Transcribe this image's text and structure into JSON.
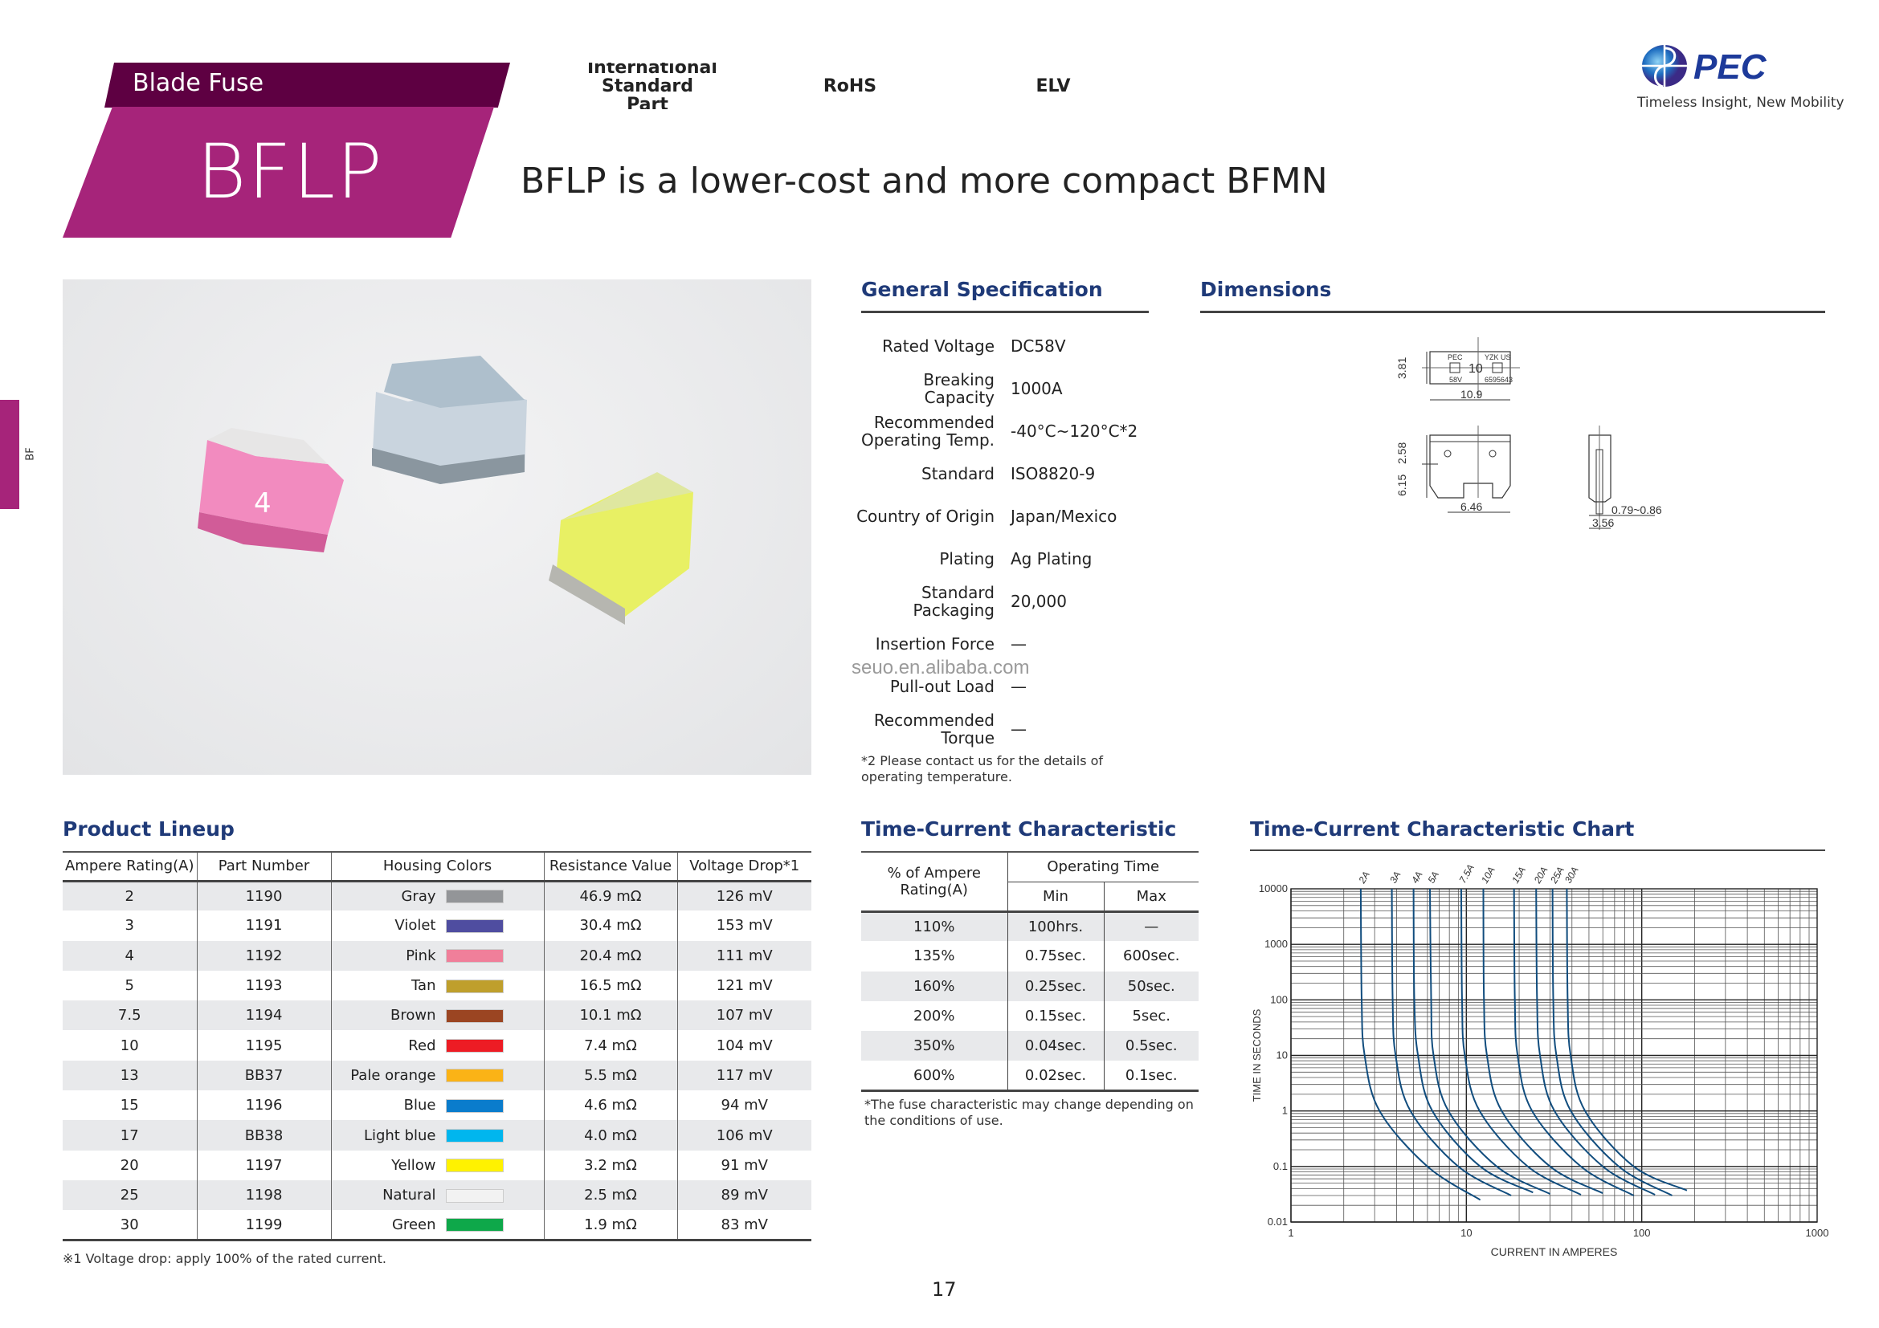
{
  "header": {
    "category": "Blade Fuse",
    "product": "BFLP",
    "tagline": "BFLP is a lower-cost and more compact BFMN",
    "badges": [
      "International Standard Part",
      "RoHS",
      "ELV"
    ],
    "badge_colors": [
      "#f9bb72",
      "#b9d98a",
      "#97d5d0"
    ]
  },
  "logo": {
    "name": "PEC",
    "tagline": "Timeless Insight, New Mobility"
  },
  "side_tab": "BF",
  "spec": {
    "title": "General Specification",
    "rows": [
      {
        "label": "Rated Voltage",
        "value": "DC58V"
      },
      {
        "label": "Breaking Capacity",
        "value": "1000A"
      },
      {
        "label": "Recommended Operating Temp.",
        "value": "-40°C~120°C*2"
      },
      {
        "label": "Standard",
        "value": "ISO8820-9"
      },
      {
        "label": "Country of Origin",
        "value": "Japan/Mexico"
      },
      {
        "label": "Plating",
        "value": "Ag Plating"
      },
      {
        "label": "Standard Packaging",
        "value": "20,000"
      },
      {
        "label": "Insertion Force",
        "value": "—"
      },
      {
        "label": "Pull-out Load",
        "value": "—"
      },
      {
        "label": "Recommended Torque",
        "value": "—"
      }
    ],
    "footnote": "*2 Please contact us for the details of operating temperature."
  },
  "watermark": "seuo.en.alibaba.com",
  "dimensions": {
    "title": "Dimensions",
    "top_height": "3.81",
    "top_width": "10.9",
    "front_top": "2.58",
    "front_height": "6.15",
    "front_width": "6.46",
    "side_width": "3.56",
    "blade_thickness": "0.79~0.86",
    "marks": {
      "brand": "PEC",
      "code": "YZK US",
      "rating": "10",
      "voltage": "58V",
      "pat": "6595643"
    }
  },
  "lineup": {
    "title": "Product Lineup",
    "headers": [
      "Ampere Rating(A)",
      "Part Number",
      "Housing Colors",
      "Resistance Value",
      "Voltage Drop*1"
    ],
    "rows": [
      [
        "2",
        "1190",
        "Gray",
        "#939598",
        "46.9 mΩ",
        "126 mV"
      ],
      [
        "3",
        "1191",
        "Violet",
        "#4f4da0",
        "30.4 mΩ",
        "153 mV"
      ],
      [
        "4",
        "1192",
        "Pink",
        "#f07f9a",
        "20.4 mΩ",
        "111 mV"
      ],
      [
        "5",
        "1193",
        "Tan",
        "#bf9f2c",
        "16.5 mΩ",
        "121 mV"
      ],
      [
        "7.5",
        "1194",
        "Brown",
        "#9b4522",
        "10.1 mΩ",
        "107 mV"
      ],
      [
        "10",
        "1195",
        "Red",
        "#ed1c24",
        "7.4 mΩ",
        "104 mV"
      ],
      [
        "13",
        "BB37",
        "Pale orange",
        "#fbb316",
        "5.5 mΩ",
        "117 mV"
      ],
      [
        "15",
        "1196",
        "Blue",
        "#0a7ccc",
        "4.6 mΩ",
        "94 mV"
      ],
      [
        "17",
        "BB38",
        "Light blue",
        "#00b6ee",
        "4.0 mΩ",
        "106 mV"
      ],
      [
        "20",
        "1197",
        "Yellow",
        "#fff200",
        "3.2 mΩ",
        "91 mV"
      ],
      [
        "25",
        "1198",
        "Natural",
        "#f2f2f2",
        "2.5 mΩ",
        "89 mV"
      ],
      [
        "30",
        "1199",
        "Green",
        "#0ea84a",
        "1.9 mΩ",
        "83 mV"
      ]
    ],
    "footnote": "※1 Voltage drop: apply 100% of the rated current."
  },
  "tc": {
    "title": "Time-Current Characteristic",
    "col1": "% of Ampere Rating(A)",
    "group": "Operating Time",
    "min": "Min",
    "max": "Max",
    "rows": [
      [
        "110%",
        "100hrs.",
        "—"
      ],
      [
        "135%",
        "0.75sec.",
        "600sec."
      ],
      [
        "160%",
        "0.25sec.",
        "50sec."
      ],
      [
        "200%",
        "0.15sec.",
        "5sec."
      ],
      [
        "350%",
        "0.04sec.",
        "0.5sec."
      ],
      [
        "600%",
        "0.02sec.",
        "0.1sec."
      ]
    ],
    "footnote": "*The fuse characteristic may change depending on the conditions of use."
  },
  "chart_data": {
    "type": "line",
    "title": "Time-Current Characteristic Chart",
    "xlabel": "CURRENT IN AMPERES",
    "ylabel": "TIME IN SECONDS",
    "xscale": "log",
    "yscale": "log",
    "xlim": [
      1,
      1000
    ],
    "ylim": [
      0.01,
      10000
    ],
    "grid": true,
    "xticks": [
      "1",
      "10",
      "100",
      "1000"
    ],
    "yticks": [
      "10000",
      "1000",
      "100",
      "10",
      "1",
      "0.1",
      "0.01"
    ],
    "line_color": "#114d7e",
    "series": [
      {
        "name": "2A",
        "points": [
          [
            2.5,
            10000
          ],
          [
            2.53,
            100
          ],
          [
            2.63,
            10
          ],
          [
            3.2,
            1
          ],
          [
            6,
            0.1
          ],
          [
            12,
            0.025
          ]
        ]
      },
      {
        "name": "3A",
        "points": [
          [
            3.76,
            10000
          ],
          [
            3.8,
            100
          ],
          [
            3.95,
            10
          ],
          [
            4.8,
            1
          ],
          [
            9,
            0.1
          ],
          [
            18,
            0.03
          ]
        ]
      },
      {
        "name": "4A",
        "points": [
          [
            5,
            10000
          ],
          [
            5.05,
            100
          ],
          [
            5.3,
            10
          ],
          [
            6.4,
            1
          ],
          [
            12,
            0.1
          ],
          [
            24,
            0.034
          ]
        ]
      },
      {
        "name": "5A",
        "points": [
          [
            6.2,
            10000
          ],
          [
            6.3,
            100
          ],
          [
            6.5,
            10
          ],
          [
            7.9,
            1
          ],
          [
            14.9,
            0.1
          ],
          [
            30,
            0.032
          ]
        ]
      },
      {
        "name": "7.5A",
        "points": [
          [
            9.35,
            10000
          ],
          [
            9.45,
            100
          ],
          [
            9.8,
            10
          ],
          [
            11.9,
            1
          ],
          [
            22.4,
            0.1
          ],
          [
            45,
            0.031
          ]
        ]
      },
      {
        "name": "10A",
        "points": [
          [
            12.5,
            10000
          ],
          [
            12.6,
            100
          ],
          [
            13.1,
            10
          ],
          [
            15.9,
            1
          ],
          [
            30,
            0.1
          ],
          [
            60,
            0.033
          ]
        ]
      },
      {
        "name": "15A",
        "points": [
          [
            18.7,
            10000
          ],
          [
            18.9,
            100
          ],
          [
            19.6,
            10
          ],
          [
            23.7,
            1
          ],
          [
            45,
            0.1
          ],
          [
            90,
            0.03
          ]
        ]
      },
      {
        "name": "20A",
        "points": [
          [
            25,
            10000
          ],
          [
            25.3,
            100
          ],
          [
            26.3,
            10
          ],
          [
            31.8,
            1
          ],
          [
            60,
            0.1
          ],
          [
            119,
            0.031
          ]
        ]
      },
      {
        "name": "25A",
        "points": [
          [
            31,
            10000
          ],
          [
            31.3,
            100
          ],
          [
            32.6,
            10
          ],
          [
            39.4,
            1
          ],
          [
            74,
            0.1
          ],
          [
            149,
            0.03
          ]
        ]
      },
      {
        "name": "30A",
        "points": [
          [
            37.4,
            10000
          ],
          [
            37.8,
            100
          ],
          [
            39.3,
            10
          ],
          [
            47.5,
            1
          ],
          [
            90,
            0.1
          ],
          [
            181,
            0.037
          ]
        ]
      }
    ]
  },
  "page_number": "17"
}
